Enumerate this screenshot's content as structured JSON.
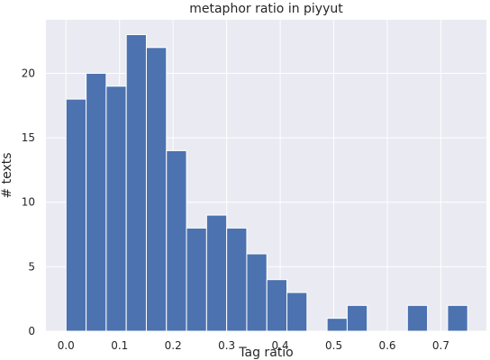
{
  "chart_data": {
    "type": "bar",
    "title": "metaphor ratio in piyyut",
    "xlabel": "Tag ratio",
    "ylabel": "# texts",
    "xlim": [
      -0.0375,
      0.785
    ],
    "ylim": [
      0,
      24.15
    ],
    "bin_width": 0.0375,
    "bins": [
      {
        "start": 0.0,
        "end": 0.0375,
        "count": 18
      },
      {
        "start": 0.0375,
        "end": 0.075,
        "count": 20
      },
      {
        "start": 0.075,
        "end": 0.1125,
        "count": 19
      },
      {
        "start": 0.1125,
        "end": 0.15,
        "count": 23
      },
      {
        "start": 0.15,
        "end": 0.1875,
        "count": 22
      },
      {
        "start": 0.1875,
        "end": 0.225,
        "count": 14
      },
      {
        "start": 0.225,
        "end": 0.2625,
        "count": 8
      },
      {
        "start": 0.2625,
        "end": 0.3,
        "count": 9
      },
      {
        "start": 0.3,
        "end": 0.3375,
        "count": 8
      },
      {
        "start": 0.3375,
        "end": 0.375,
        "count": 6
      },
      {
        "start": 0.375,
        "end": 0.4125,
        "count": 4
      },
      {
        "start": 0.4125,
        "end": 0.45,
        "count": 3
      },
      {
        "start": 0.45,
        "end": 0.4875,
        "count": 0
      },
      {
        "start": 0.4875,
        "end": 0.525,
        "count": 1
      },
      {
        "start": 0.525,
        "end": 0.5625,
        "count": 2
      },
      {
        "start": 0.5625,
        "end": 0.6,
        "count": 0
      },
      {
        "start": 0.6,
        "end": 0.6375,
        "count": 0
      },
      {
        "start": 0.6375,
        "end": 0.675,
        "count": 2
      },
      {
        "start": 0.675,
        "end": 0.7125,
        "count": 0
      },
      {
        "start": 0.7125,
        "end": 0.75,
        "count": 2
      }
    ],
    "x_ticks": [
      0.0,
      0.1,
      0.2,
      0.3,
      0.4,
      0.5,
      0.6,
      0.7
    ],
    "x_tick_labels": [
      "0.0",
      "0.1",
      "0.2",
      "0.3",
      "0.4",
      "0.5",
      "0.6",
      "0.7"
    ],
    "y_ticks": [
      0,
      5,
      10,
      15,
      20
    ],
    "y_tick_labels": [
      "0",
      "5",
      "10",
      "15",
      "20"
    ],
    "grid": true,
    "colors": {
      "bar": "#4c72b0",
      "bar_edge": "#ffffff",
      "plot_background": "#eaeaf2",
      "grid": "#ffffff",
      "text": "#262626"
    }
  }
}
